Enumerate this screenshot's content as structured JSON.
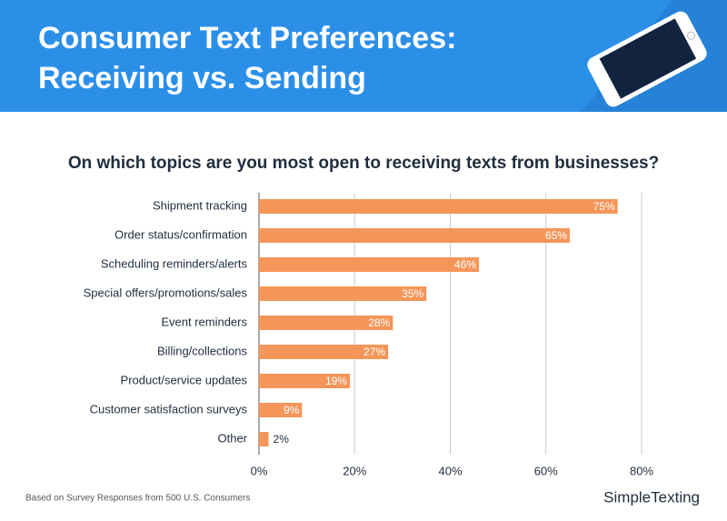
{
  "chart_data": {
    "type": "hbar",
    "title": [
      "Consumer Text Preferences:",
      "Receiving vs. Sending"
    ],
    "subtitle": "On which topics are you most open to receiving texts from businesses?",
    "categories": [
      "Shipment tracking",
      "Order status/confirmation",
      "Scheduling reminders/alerts",
      "Special offers/promotions/sales",
      "Event reminders",
      "Billing/collections",
      "Product/service updates",
      "Customer satisfaction surveys",
      "Other"
    ],
    "values": [
      75,
      65,
      46,
      35,
      28,
      27,
      19,
      9,
      2
    ],
    "value_labels": [
      "75%",
      "65%",
      "46%",
      "35%",
      "28%",
      "27%",
      "19%",
      "9%",
      "2%"
    ],
    "color": "#f4965a",
    "xlim": [
      0,
      80
    ],
    "xticks": [
      {
        "value": 0,
        "label": "0%"
      },
      {
        "value": 20,
        "label": "20%"
      },
      {
        "value": 40,
        "label": "40%"
      },
      {
        "value": 60,
        "label": "60%"
      },
      {
        "value": 80,
        "label": "80%"
      }
    ],
    "grid": true,
    "note": "Based on Survey Responses from 500 U.S. Consumers",
    "brand": "SimpleTexting"
  }
}
